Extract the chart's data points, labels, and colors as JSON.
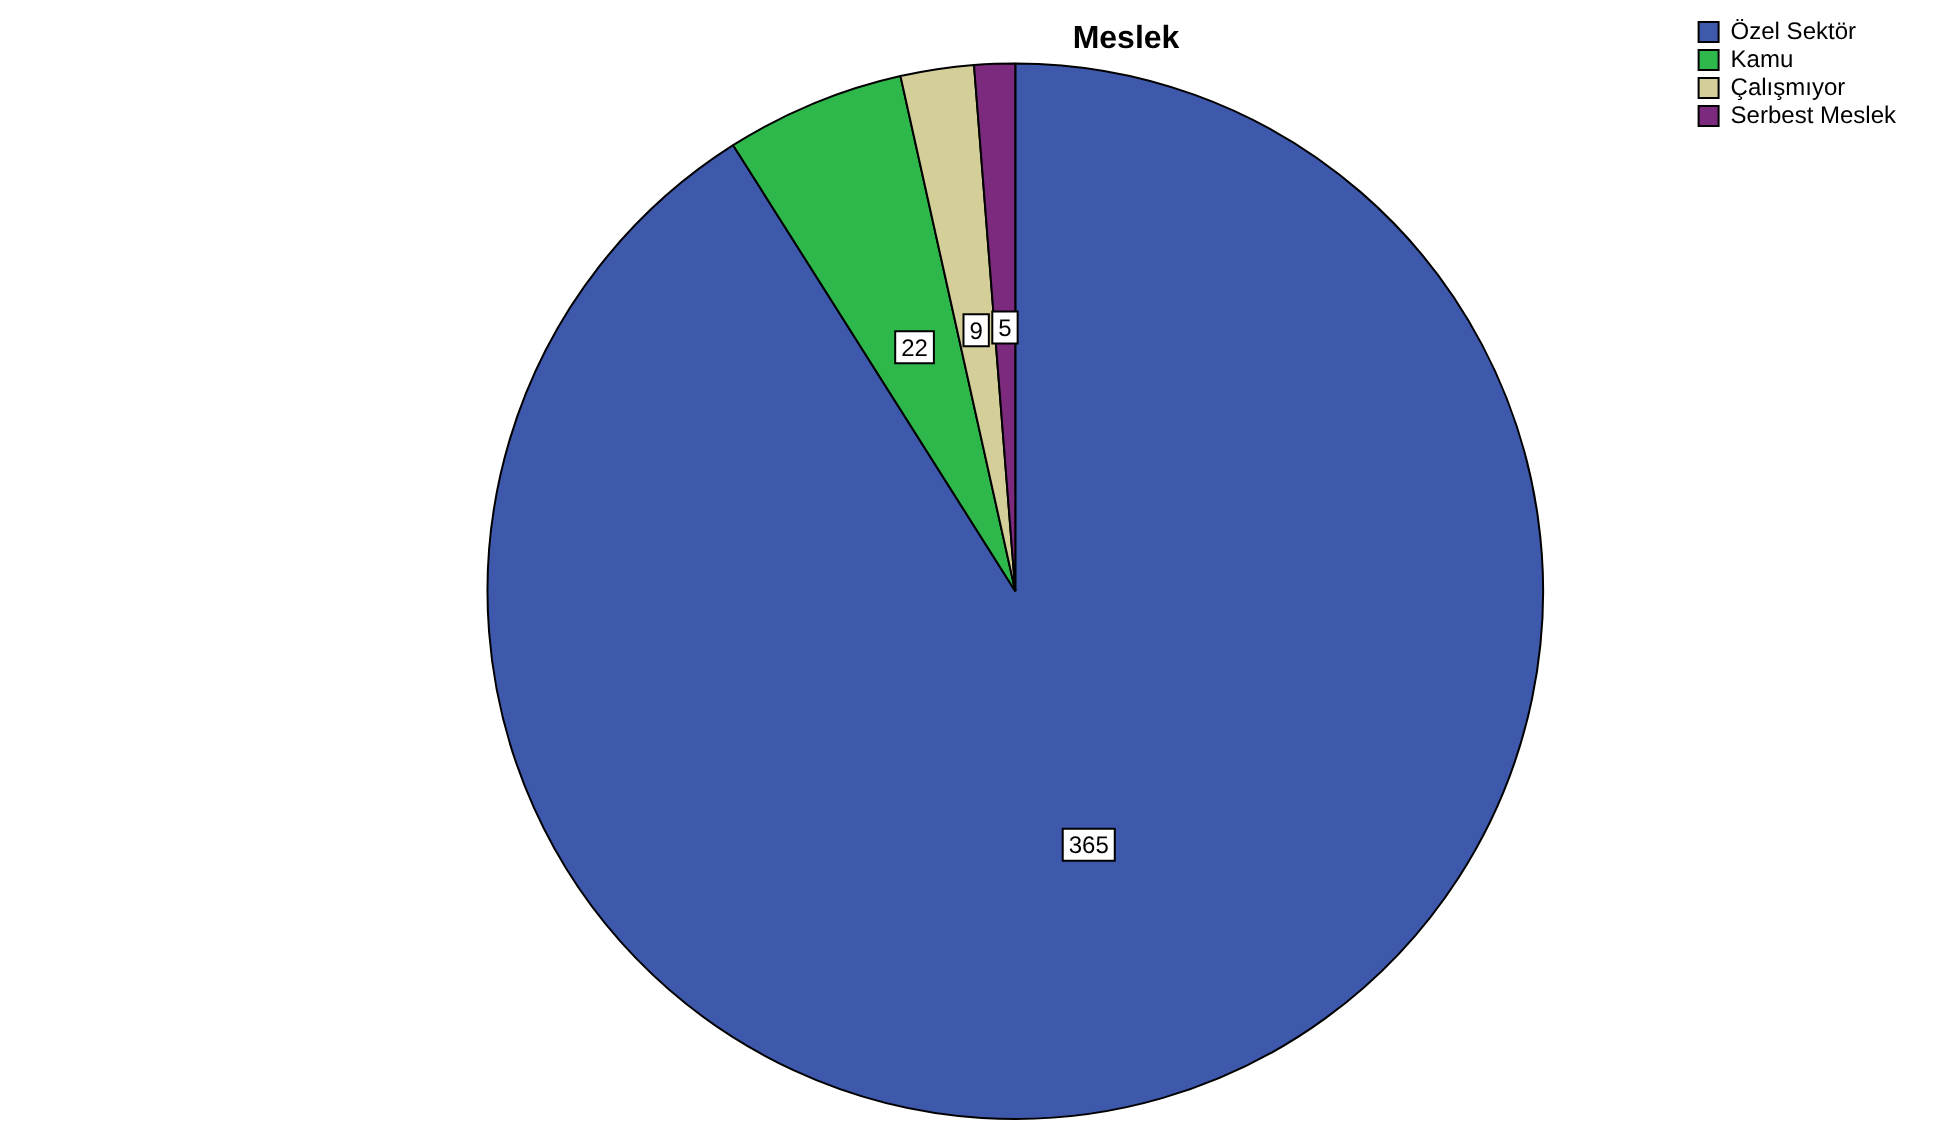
{
  "chart_data": {
    "type": "pie",
    "title": "Meslek",
    "categories": [
      "Özel Sektör",
      "Kamu",
      "Çalışmıyor",
      "Serbest Meslek"
    ],
    "values": [
      365,
      22,
      9,
      5
    ],
    "colors": [
      "#3e58ac",
      "#2eb84b",
      "#d4cf98",
      "#7c2a7d"
    ],
    "legend": "top right",
    "data_labels": true
  }
}
